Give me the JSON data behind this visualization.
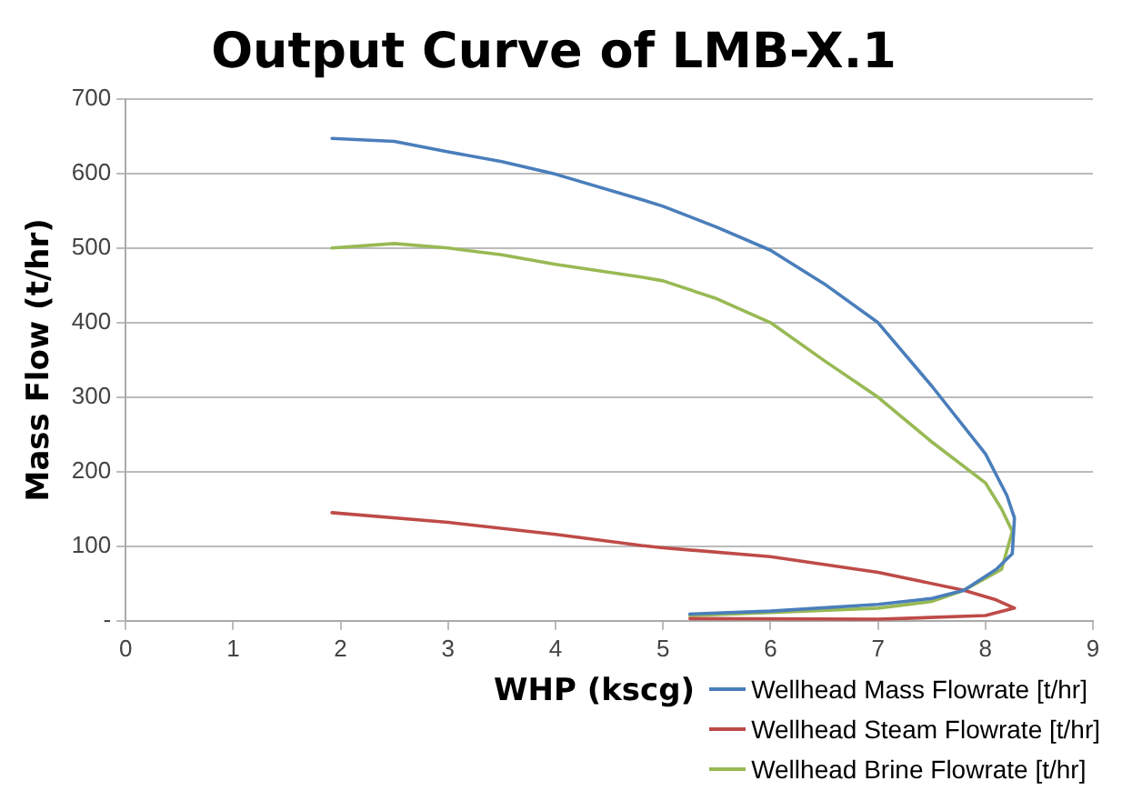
{
  "chart_data": {
    "type": "line",
    "title": "Output Curve of LMB-X.1",
    "xlabel": "WHP (kscg)",
    "ylabel": "Mass Flow (t/hr)",
    "xlim": [
      0,
      9
    ],
    "xticks": [
      0,
      1,
      2,
      3,
      4,
      5,
      6,
      7,
      8,
      9
    ],
    "ylim": [
      0,
      700
    ],
    "yticks": [
      {
        "value": 0,
        "label": "-"
      },
      100,
      200,
      300,
      400,
      500,
      600,
      700
    ],
    "grid": "y",
    "legend": "bottom right",
    "marker": "none",
    "line_style": "solid",
    "series": [
      {
        "name": "Wellhead Mass Flowrate [t/hr]",
        "color": "#4a7ebb",
        "x": [
          1.92,
          2.5,
          3,
          3.5,
          4,
          4.8,
          5,
          5.5,
          6,
          6.5,
          7,
          7.5,
          8,
          8.2,
          8.27,
          8.25,
          8.1,
          7.8,
          7.5,
          7,
          6,
          5.25
        ],
        "values": [
          647,
          643,
          629,
          616,
          599,
          565,
          556,
          528,
          497,
          452,
          400,
          315,
          224,
          168,
          138,
          90,
          69,
          41,
          30,
          22,
          13,
          9
        ]
      },
      {
        "name": "Wellhead Steam Flowrate [t/hr]",
        "color": "#be4b48",
        "x": [
          1.92,
          3,
          4,
          4.8,
          5,
          6,
          7,
          7.8,
          8.1,
          8.27,
          8,
          7,
          5.25
        ],
        "values": [
          145,
          132,
          116,
          101,
          98,
          86,
          65,
          41,
          28,
          17,
          7,
          2,
          3
        ]
      },
      {
        "name": "Wellhead Brine Flowrate [t/hr]",
        "color": "#98b954",
        "x": [
          1.92,
          2.5,
          3,
          3.5,
          4,
          4.8,
          5,
          5.5,
          6,
          6.5,
          7,
          7.5,
          8,
          8.15,
          8.25,
          8.15,
          7.8,
          7.5,
          7,
          6,
          5.25
        ],
        "values": [
          500,
          506,
          500,
          491,
          478,
          461,
          456,
          432,
          400,
          349,
          300,
          240,
          185,
          150,
          120,
          69,
          41,
          26,
          17,
          11,
          7
        ]
      }
    ]
  }
}
